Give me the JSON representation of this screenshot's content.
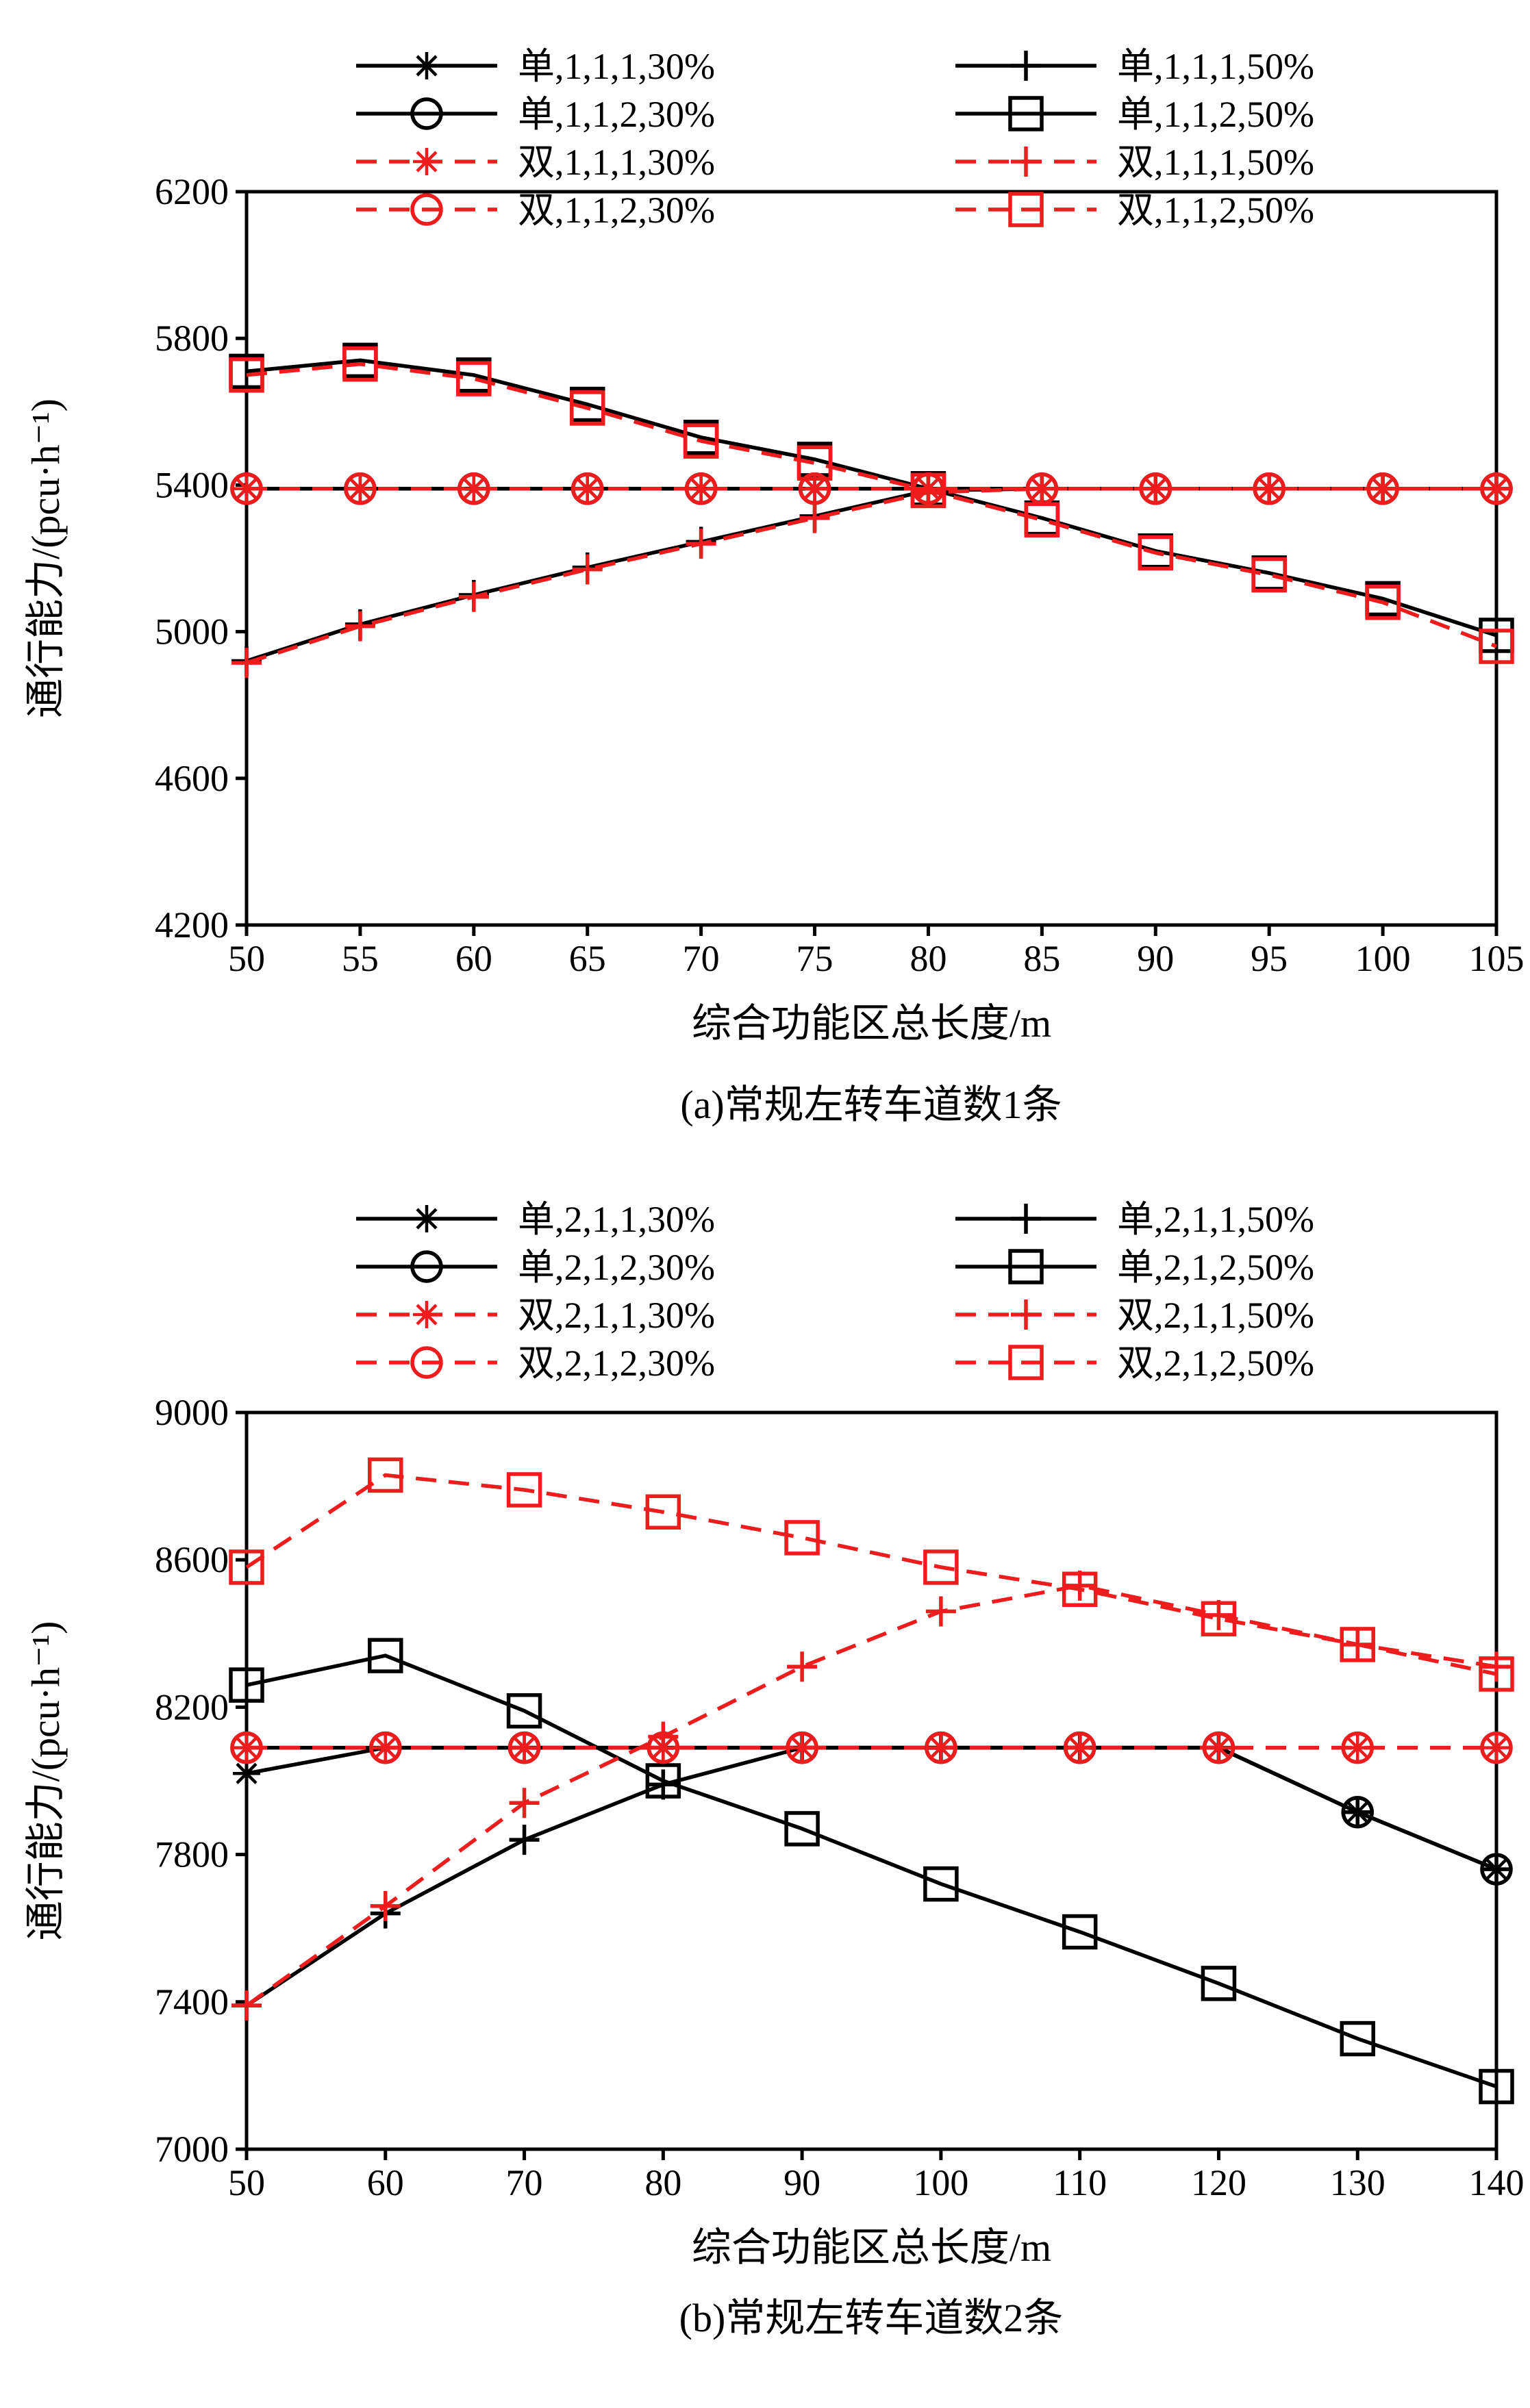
{
  "figure": {
    "background": "#ffffff",
    "colors": {
      "black": "#000000",
      "red": "#ee1c1c"
    }
  },
  "chart_data": [
    {
      "type": "line",
      "caption": "(a)常规左转车道数1条",
      "xlabel": "综合功能区总长度/m",
      "ylabel": "通行能力/(pcu·h⁻¹)",
      "xlim": [
        50,
        105
      ],
      "ylim": [
        4200,
        6200
      ],
      "xticks": [
        50,
        55,
        60,
        65,
        70,
        75,
        80,
        85,
        90,
        95,
        100,
        105
      ],
      "yticks": [
        4200,
        4600,
        5000,
        5400,
        5800,
        6200
      ],
      "grid": false,
      "legend_position": "top-inside-two-columns",
      "x": [
        50,
        55,
        60,
        65,
        70,
        75,
        80,
        85,
        90,
        95,
        100,
        105
      ],
      "series": [
        {
          "name": "单,1,1,1,30%",
          "color": "black",
          "line": "solid",
          "marker": "asterisk",
          "values": [
            5390,
            5390,
            5390,
            5390,
            5390,
            5390,
            5390,
            5390,
            5390,
            5390,
            5390,
            5390
          ]
        },
        {
          "name": "单,1,1,2,30%",
          "color": "black",
          "line": "solid",
          "marker": "circle",
          "values": [
            5390,
            5390,
            5390,
            5390,
            5390,
            5390,
            5390,
            5390,
            5390,
            5390,
            5390,
            5390
          ]
        },
        {
          "name": "双,1,1,1,30%",
          "color": "red",
          "line": "dashed",
          "marker": "asterisk",
          "values": [
            5390,
            5390,
            5390,
            5390,
            5390,
            5390,
            5390,
            5390,
            5390,
            5390,
            5390,
            5390
          ]
        },
        {
          "name": "双,1,1,2,30%",
          "color": "red",
          "line": "dashed",
          "marker": "circle",
          "values": [
            5390,
            5390,
            5390,
            5390,
            5390,
            5390,
            5390,
            5390,
            5390,
            5390,
            5390,
            5390
          ]
        },
        {
          "name": "单,1,1,1,50%",
          "color": "black",
          "line": "solid",
          "marker": "plus",
          "values": [
            4920,
            5020,
            5100,
            5175,
            5245,
            5315,
            5385,
            5390,
            5390,
            5390,
            5390,
            5390
          ]
        },
        {
          "name": "单,1,1,2,50%",
          "color": "black",
          "line": "solid",
          "marker": "square",
          "values": [
            5710,
            5740,
            5700,
            5620,
            5530,
            5470,
            5390,
            5310,
            5220,
            5160,
            5090,
            4990
          ]
        },
        {
          "name": "双,1,1,1,50%",
          "color": "red",
          "line": "dashed",
          "marker": "plus",
          "values": [
            4915,
            5015,
            5095,
            5170,
            5240,
            5310,
            5380,
            5390,
            5390,
            5390,
            5390,
            5390
          ]
        },
        {
          "name": "双,1,1,2,50%",
          "color": "red",
          "line": "dashed",
          "marker": "square",
          "values": [
            5700,
            5730,
            5690,
            5610,
            5520,
            5460,
            5385,
            5305,
            5215,
            5155,
            5080,
            4960
          ]
        }
      ],
      "legend_columns": [
        [
          0,
          1,
          2,
          3
        ],
        [
          4,
          5,
          6,
          7
        ]
      ]
    },
    {
      "type": "line",
      "caption": "(b)常规左转车道数2条",
      "xlabel": "综合功能区总长度/m",
      "ylabel": "通行能力/(pcu·h⁻¹)",
      "xlim": [
        50,
        140
      ],
      "ylim": [
        7000,
        9000
      ],
      "xticks": [
        50,
        60,
        70,
        80,
        90,
        100,
        110,
        120,
        130,
        140
      ],
      "yticks": [
        7000,
        7400,
        7800,
        8200,
        8600,
        9000
      ],
      "grid": false,
      "legend_position": "top-inside-two-columns",
      "x": [
        50,
        60,
        70,
        80,
        90,
        100,
        110,
        120,
        130,
        140
      ],
      "series": [
        {
          "name": "单,2,1,1,30%",
          "color": "black",
          "line": "solid",
          "marker": "asterisk",
          "values": [
            8020,
            8090,
            8090,
            8090,
            8090,
            8090,
            8090,
            8090,
            7915,
            7760
          ]
        },
        {
          "name": "单,2,1,2,30%",
          "color": "black",
          "line": "solid",
          "marker": "circle",
          "values": [
            8090,
            8090,
            8090,
            8090,
            8090,
            8090,
            8090,
            8090,
            7915,
            7760
          ]
        },
        {
          "name": "双,2,1,1,30%",
          "color": "red",
          "line": "dashed",
          "marker": "asterisk",
          "values": [
            8090,
            8090,
            8090,
            8090,
            8090,
            8090,
            8090,
            8090,
            8090,
            8090
          ]
        },
        {
          "name": "双,2,1,2,30%",
          "color": "red",
          "line": "dashed",
          "marker": "circle",
          "values": [
            8090,
            8090,
            8090,
            8090,
            8090,
            8090,
            8090,
            8090,
            8090,
            8090
          ]
        },
        {
          "name": "单,2,1,1,50%",
          "color": "black",
          "line": "solid",
          "marker": "plus",
          "values": [
            7390,
            7640,
            7840,
            7990,
            8090,
            8090,
            8090,
            8090,
            7915,
            7760
          ]
        },
        {
          "name": "单,2,1,2,50%",
          "color": "black",
          "line": "solid",
          "marker": "square",
          "values": [
            8260,
            8340,
            8190,
            8000,
            7870,
            7720,
            7590,
            7450,
            7300,
            7170
          ]
        },
        {
          "name": "双,2,1,1,50%",
          "color": "red",
          "line": "dashed",
          "marker": "plus",
          "values": [
            7390,
            7660,
            7940,
            8120,
            8310,
            8460,
            8530,
            8450,
            8370,
            8310
          ]
        },
        {
          "name": "双,2,1,2,50%",
          "color": "red",
          "line": "dashed",
          "marker": "square",
          "values": [
            8580,
            8830,
            8790,
            8730,
            8660,
            8580,
            8520,
            8440,
            8370,
            8290
          ]
        }
      ],
      "legend_columns": [
        [
          0,
          1,
          2,
          3
        ],
        [
          4,
          5,
          6,
          7
        ]
      ]
    }
  ]
}
